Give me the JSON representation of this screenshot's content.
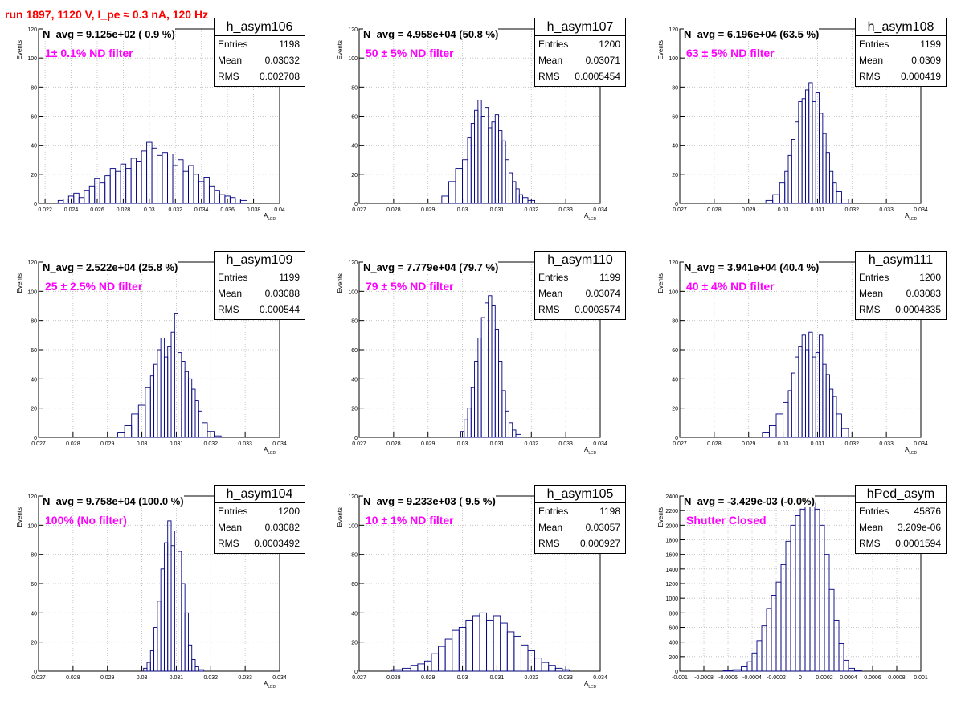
{
  "header": {
    "run_title": "run 1897,  1120 V, I_pe ≈ 0.3 nA, 120 Hz"
  },
  "chart_data": [
    {
      "type": "histogram",
      "name": "h_asym106",
      "stats": {
        "entries": "1198",
        "mean": "0.03032",
        "rms": "0.002708"
      },
      "navg": "N_avg = 9.125e+02 ( 0.9 %)",
      "filter": "1± 0.1% ND filter",
      "xlabel": "A",
      "xlabel_sub": "LED",
      "ylabel": "Events",
      "xlim": [
        0.0215,
        0.04
      ],
      "ylim": [
        0,
        120
      ],
      "xticks": [
        0.022,
        0.024,
        0.026,
        0.028,
        0.03,
        0.032,
        0.034,
        0.036,
        0.038,
        0.04
      ],
      "xtick_labels": [
        "0.022",
        "0.024",
        "0.026",
        "0.028",
        "0.03",
        "0.032",
        "0.034",
        "0.036",
        "0.038",
        "0.04"
      ],
      "yticks": [
        0,
        20,
        40,
        60,
        80,
        100,
        120
      ],
      "x": [
        0.0222,
        0.0228,
        0.0232,
        0.0236,
        0.024,
        0.0244,
        0.0248,
        0.0252,
        0.0256,
        0.026,
        0.0264,
        0.0268,
        0.0272,
        0.0276,
        0.028,
        0.0284,
        0.0288,
        0.0292,
        0.0296,
        0.03,
        0.0304,
        0.0308,
        0.0312,
        0.0316,
        0.032,
        0.0324,
        0.0328,
        0.0332,
        0.0336,
        0.034,
        0.0344,
        0.0348,
        0.0352,
        0.0356,
        0.036,
        0.0364,
        0.0368,
        0.0372,
        0.0378
      ],
      "y": [
        0,
        0,
        2,
        3,
        5,
        7,
        4,
        9,
        12,
        17,
        14,
        19,
        24,
        22,
        27,
        24,
        31,
        29,
        36,
        42,
        38,
        33,
        35,
        34,
        26,
        30,
        22,
        26,
        20,
        15,
        18,
        12,
        9,
        6,
        5,
        4,
        3,
        2,
        0
      ]
    },
    {
      "type": "histogram",
      "name": "h_asym107",
      "stats": {
        "entries": "1200",
        "mean": "0.03071",
        "rms": "0.0005454"
      },
      "navg": "N_avg = 4.958e+04 (50.8 %)",
      "filter": "50 ± 5% ND filter",
      "xlabel": "A",
      "xlabel_sub": "LED",
      "ylabel": "Events",
      "xlim": [
        0.027,
        0.034
      ],
      "ylim": [
        0,
        120
      ],
      "xticks": [
        0.027,
        0.028,
        0.029,
        0.03,
        0.031,
        0.032,
        0.033,
        0.034
      ],
      "xtick_labels": [
        "0.027",
        "0.028",
        "0.029",
        "0.03",
        "0.031",
        "0.032",
        "0.033",
        "0.034"
      ],
      "yticks": [
        0,
        20,
        40,
        60,
        80,
        100,
        120
      ],
      "x": [
        0.0293,
        0.0295,
        0.0297,
        0.0299,
        0.0301,
        0.0302,
        0.0303,
        0.0304,
        0.0305,
        0.0306,
        0.0307,
        0.0308,
        0.0309,
        0.031,
        0.0311,
        0.0312,
        0.0313,
        0.0314,
        0.0315,
        0.0316,
        0.0317,
        0.0318,
        0.032,
        0.0322,
        0.0324
      ],
      "y": [
        0,
        5,
        15,
        24,
        30,
        45,
        55,
        64,
        71,
        60,
        66,
        52,
        56,
        61,
        50,
        43,
        30,
        21,
        15,
        10,
        6,
        4,
        2,
        0,
        0
      ]
    },
    {
      "type": "histogram",
      "name": "h_asym108",
      "stats": {
        "entries": "1199",
        "mean": "0.0309",
        "rms": "0.000419"
      },
      "navg": "N_avg = 6.196e+04 (63.5 %)",
      "filter": "63 ± 5% ND filter",
      "xlabel": "A",
      "xlabel_sub": "LED",
      "ylabel": "Events",
      "xlim": [
        0.027,
        0.034
      ],
      "ylim": [
        0,
        120
      ],
      "xticks": [
        0.027,
        0.028,
        0.029,
        0.03,
        0.031,
        0.032,
        0.033,
        0.034
      ],
      "xtick_labels": [
        "0.027",
        "0.028",
        "0.029",
        "0.03",
        "0.031",
        "0.032",
        "0.033",
        "0.034"
      ],
      "yticks": [
        0,
        20,
        40,
        60,
        80,
        100,
        120
      ],
      "x": [
        0.0296,
        0.0298,
        0.03,
        0.0301,
        0.0302,
        0.0303,
        0.0304,
        0.0305,
        0.0306,
        0.0307,
        0.0308,
        0.0309,
        0.031,
        0.0311,
        0.0312,
        0.0313,
        0.0314,
        0.0315,
        0.0316,
        0.0318,
        0.032
      ],
      "y": [
        2,
        6,
        14,
        22,
        33,
        44,
        56,
        70,
        72,
        78,
        83,
        70,
        76,
        62,
        48,
        35,
        22,
        14,
        8,
        3,
        0
      ]
    },
    {
      "type": "histogram",
      "name": "h_asym109",
      "stats": {
        "entries": "1199",
        "mean": "0.03088",
        "rms": "0.000544"
      },
      "navg": "N_avg = 2.522e+04 (25.8 %)",
      "filter": "25 ± 2.5% ND filter",
      "xlabel": "A",
      "xlabel_sub": "LED",
      "ylabel": "Events",
      "xlim": [
        0.027,
        0.034
      ],
      "ylim": [
        0,
        120
      ],
      "xticks": [
        0.027,
        0.028,
        0.029,
        0.03,
        0.031,
        0.032,
        0.033,
        0.034
      ],
      "xtick_labels": [
        "0.027",
        "0.028",
        "0.029",
        "0.03",
        "0.031",
        "0.032",
        "0.033",
        "0.034"
      ],
      "yticks": [
        0,
        20,
        40,
        60,
        80,
        100,
        120
      ],
      "x": [
        0.0294,
        0.0296,
        0.0298,
        0.03,
        0.0302,
        0.0303,
        0.0304,
        0.0305,
        0.0306,
        0.0307,
        0.0308,
        0.0309,
        0.031,
        0.0311,
        0.0312,
        0.0313,
        0.0314,
        0.0315,
        0.0316,
        0.0317,
        0.0318,
        0.032,
        0.0322,
        0.0324
      ],
      "y": [
        3,
        8,
        16,
        22,
        34,
        42,
        50,
        60,
        68,
        55,
        62,
        72,
        85,
        58,
        52,
        45,
        40,
        33,
        25,
        18,
        10,
        4,
        1,
        0
      ]
    },
    {
      "type": "histogram",
      "name": "h_asym110",
      "stats": {
        "entries": "1199",
        "mean": "0.03074",
        "rms": "0.0003574"
      },
      "navg": "N_avg = 7.779e+04 (79.7 %)",
      "filter": "79 ± 5% ND filter",
      "xlabel": "A",
      "xlabel_sub": "LED",
      "ylabel": "Events",
      "xlim": [
        0.027,
        0.034
      ],
      "ylim": [
        0,
        120
      ],
      "xticks": [
        0.027,
        0.028,
        0.029,
        0.03,
        0.031,
        0.032,
        0.033,
        0.034
      ],
      "xtick_labels": [
        "0.027",
        "0.028",
        "0.029",
        "0.03",
        "0.031",
        "0.032",
        "0.033",
        "0.034"
      ],
      "yticks": [
        0,
        20,
        40,
        60,
        80,
        100,
        120
      ],
      "x": [
        0.03,
        0.0301,
        0.0302,
        0.0303,
        0.0304,
        0.0305,
        0.0306,
        0.0307,
        0.0308,
        0.0309,
        0.031,
        0.0311,
        0.0312,
        0.0313,
        0.0314,
        0.0315,
        0.0316,
        0.0318
      ],
      "y": [
        4,
        12,
        20,
        34,
        52,
        68,
        82,
        92,
        97,
        90,
        74,
        52,
        32,
        18,
        10,
        5,
        2,
        0
      ]
    },
    {
      "type": "histogram",
      "name": "h_asym111",
      "stats": {
        "entries": "1200",
        "mean": "0.03083",
        "rms": "0.0004835"
      },
      "navg": "N_avg = 3.941e+04 (40.4 %)",
      "filter": "40 ± 4% ND filter",
      "xlabel": "A",
      "xlabel_sub": "LED",
      "ylabel": "Events",
      "xlim": [
        0.027,
        0.034
      ],
      "ylim": [
        0,
        120
      ],
      "xticks": [
        0.027,
        0.028,
        0.029,
        0.03,
        0.031,
        0.032,
        0.033,
        0.034
      ],
      "xtick_labels": [
        "0.027",
        "0.028",
        "0.029",
        "0.03",
        "0.031",
        "0.032",
        "0.033",
        "0.034"
      ],
      "yticks": [
        0,
        20,
        40,
        60,
        80,
        100,
        120
      ],
      "x": [
        0.0295,
        0.0297,
        0.0299,
        0.0301,
        0.0302,
        0.0303,
        0.0304,
        0.0305,
        0.0306,
        0.0307,
        0.0308,
        0.0309,
        0.031,
        0.0311,
        0.0312,
        0.0313,
        0.0314,
        0.0315,
        0.0316,
        0.0318,
        0.032
      ],
      "y": [
        3,
        8,
        16,
        24,
        32,
        44,
        55,
        62,
        70,
        60,
        72,
        55,
        58,
        70,
        50,
        43,
        33,
        28,
        16,
        6,
        0
      ]
    },
    {
      "type": "histogram",
      "name": "h_asym104",
      "stats": {
        "entries": "1200",
        "mean": "0.03082",
        "rms": "0.0003492"
      },
      "navg": "N_avg = 9.758e+04 (100.0 %)",
      "filter": "100% (No filter)",
      "xlabel": "A",
      "xlabel_sub": "LED",
      "ylabel": "Events",
      "xlim": [
        0.027,
        0.034
      ],
      "ylim": [
        0,
        120
      ],
      "xticks": [
        0.027,
        0.028,
        0.029,
        0.03,
        0.031,
        0.032,
        0.033,
        0.034
      ],
      "xtick_labels": [
        "0.027",
        "0.028",
        "0.029",
        "0.03",
        "0.031",
        "0.032",
        "0.033",
        "0.034"
      ],
      "yticks": [
        0,
        20,
        40,
        60,
        80,
        100,
        120
      ],
      "x": [
        0.0301,
        0.0302,
        0.0303,
        0.0304,
        0.0305,
        0.0306,
        0.0307,
        0.0308,
        0.0309,
        0.031,
        0.0311,
        0.0312,
        0.0313,
        0.0314,
        0.0315,
        0.0316,
        0.0317,
        0.0319
      ],
      "y": [
        2,
        6,
        14,
        30,
        48,
        70,
        88,
        103,
        86,
        96,
        82,
        60,
        40,
        18,
        8,
        3,
        1,
        0
      ]
    },
    {
      "type": "histogram",
      "name": "h_asym105",
      "stats": {
        "entries": "1198",
        "mean": "0.03057",
        "rms": "0.000927"
      },
      "navg": "N_avg = 9.233e+03 ( 9.5 %)",
      "filter": "10 ± 1% ND filter",
      "xlabel": "A",
      "xlabel_sub": "LED",
      "ylabel": "Events",
      "xlim": [
        0.027,
        0.034
      ],
      "ylim": [
        0,
        120
      ],
      "xticks": [
        0.027,
        0.028,
        0.029,
        0.03,
        0.031,
        0.032,
        0.033,
        0.034
      ],
      "xtick_labels": [
        "0.027",
        "0.028",
        "0.029",
        "0.03",
        "0.031",
        "0.032",
        "0.033",
        "0.034"
      ],
      "yticks": [
        0,
        20,
        40,
        60,
        80,
        100,
        120
      ],
      "x": [
        0.0281,
        0.0284,
        0.0286,
        0.0288,
        0.029,
        0.0292,
        0.0294,
        0.0296,
        0.0298,
        0.03,
        0.0302,
        0.0304,
        0.0306,
        0.0308,
        0.031,
        0.0312,
        0.0314,
        0.0316,
        0.0318,
        0.032,
        0.0322,
        0.0324,
        0.0326,
        0.0328,
        0.033,
        0.0332
      ],
      "y": [
        1,
        2,
        4,
        5,
        7,
        12,
        17,
        22,
        28,
        30,
        35,
        38,
        40,
        35,
        38,
        33,
        27,
        24,
        18,
        14,
        9,
        6,
        4,
        2,
        1,
        0
      ]
    },
    {
      "type": "histogram",
      "name": "hPed_asym",
      "stats": {
        "entries": "45876",
        "mean": "3.209e-06",
        "rms": "0.0001594"
      },
      "navg": "N_avg = -3.429e-03 (-0.0%)",
      "filter": "Shutter Closed",
      "xlabel": "",
      "xlabel_sub": "",
      "ylabel": "Events",
      "xlim": [
        -0.001,
        0.001
      ],
      "ylim": [
        0,
        2400
      ],
      "xticks": [
        -0.001,
        -0.0008,
        -0.0006,
        -0.0004,
        -0.0002,
        0,
        0.0002,
        0.0004,
        0.0006,
        0.0008,
        0.001
      ],
      "xtick_labels": [
        "-0.001",
        "-0.0008",
        "-0.0006",
        "-0.0004",
        "-0.0002",
        "0",
        "0.0002",
        "0.0004",
        "0.0006",
        "0.0008",
        "0.001"
      ],
      "yticks": [
        0,
        200,
        400,
        600,
        800,
        1000,
        1200,
        1400,
        1600,
        1800,
        2000,
        2200,
        2400
      ],
      "x": [
        -0.0006,
        -0.00052,
        -0.00046,
        -0.00042,
        -0.00038,
        -0.00034,
        -0.0003,
        -0.00026,
        -0.00022,
        -0.00018,
        -0.00014,
        -0.0001,
        -6e-05,
        -2e-05,
        2e-05,
        6e-05,
        0.0001,
        0.00014,
        0.00018,
        0.00022,
        0.00026,
        0.0003,
        0.00034,
        0.00038,
        0.00042,
        0.00048
      ],
      "y": [
        5,
        20,
        60,
        130,
        250,
        420,
        620,
        860,
        1040,
        1220,
        1460,
        1780,
        2000,
        2130,
        2220,
        2290,
        2300,
        2220,
        2000,
        1600,
        1120,
        700,
        380,
        150,
        40,
        5
      ]
    }
  ]
}
